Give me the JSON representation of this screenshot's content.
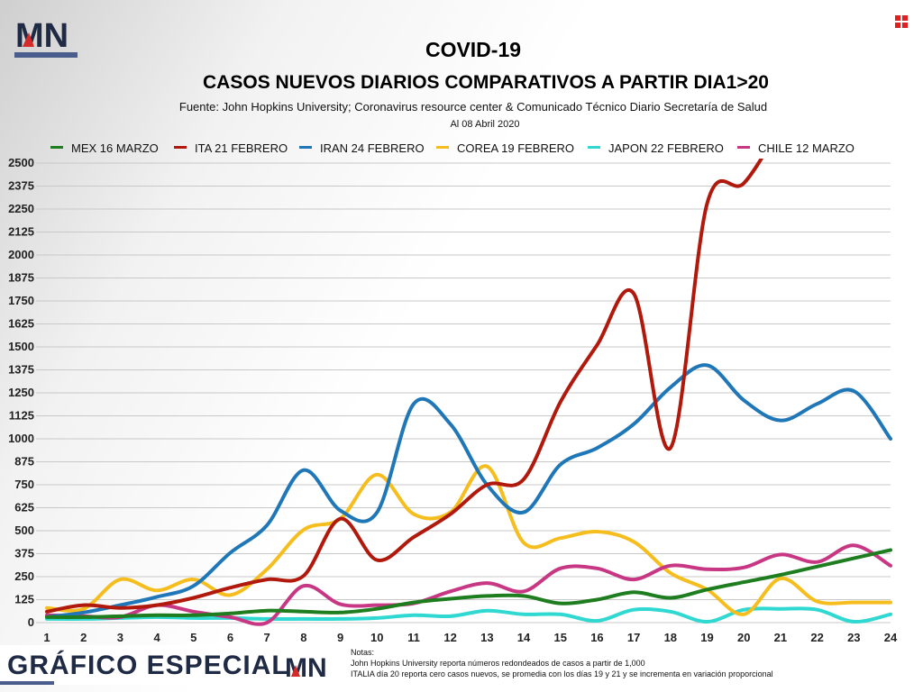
{
  "header": {
    "logo_text": "MN",
    "title": "COVID-19",
    "subtitle": "CASOS NUEVOS DIARIOS COMPARATIVOS A PARTIR DIA1>20",
    "source": "Fuente: John Hopkins University; Coronavirus resource center & Comunicado Técnico Diario Secretaría de Salud",
    "date": "Al 08 Abril 2020"
  },
  "colors": {
    "mex": "#1e7d1e",
    "ita": "#b0190c",
    "iran": "#1f77b8",
    "corea": "#f5be1e",
    "japon": "#2fd8d0",
    "chile": "#c83784",
    "brand_navy": "#1f2a44",
    "brand_red": "#d42a2a"
  },
  "footer": {
    "banner": "GRÁFICO ESPECIAL",
    "logo_text": "MN",
    "notes_title": "Notas:",
    "note_1": "John Hopkins University reporta números redondeados de casos a partir de 1,000",
    "note_2": "ITALIA día 20 reporta cero casos nuevos, se promedia con los días 19 y 21 y se incrementa en variación proporcional"
  },
  "chart_data": {
    "type": "line",
    "title": "COVID-19",
    "subtitle": "CASOS NUEVOS DIARIOS COMPARATIVOS A PARTIR DIA1>20",
    "x": [
      1,
      2,
      3,
      4,
      5,
      6,
      7,
      8,
      9,
      10,
      11,
      12,
      13,
      14,
      15,
      16,
      17,
      18,
      19,
      20,
      21,
      22,
      23,
      24
    ],
    "xlim": [
      1,
      24
    ],
    "ylim": [
      0,
      2500
    ],
    "yticks": [
      0,
      125,
      250,
      375,
      500,
      625,
      750,
      875,
      1000,
      1125,
      1250,
      1375,
      1500,
      1625,
      1750,
      1875,
      2000,
      2125,
      2250,
      2375,
      2500
    ],
    "grid": true,
    "legend_position": "top",
    "series": [
      {
        "key": "mex",
        "name": "MEX 16 MARZO",
        "color": "#1e7d1e",
        "values": [
          30,
          30,
          35,
          40,
          40,
          50,
          65,
          60,
          55,
          75,
          110,
          130,
          145,
          145,
          105,
          125,
          165,
          135,
          180,
          220,
          260,
          305,
          350,
          395
        ]
      },
      {
        "key": "ita",
        "name": "ITA 21 FEBRERO",
        "color": "#b0190c",
        "values": [
          60,
          95,
          80,
          95,
          135,
          190,
          235,
          255,
          565,
          340,
          465,
          590,
          750,
          780,
          1200,
          1510,
          1790,
          950,
          2280,
          2390,
          2700,
          null,
          null,
          null
        ]
      },
      {
        "key": "iran",
        "name": "IRAN 24 FEBRERO",
        "color": "#1f77b8",
        "values": [
          30,
          55,
          95,
          140,
          200,
          380,
          530,
          830,
          610,
          600,
          1190,
          1080,
          750,
          600,
          860,
          950,
          1080,
          1280,
          1400,
          1210,
          1100,
          1190,
          1260,
          1000
        ]
      },
      {
        "key": "corea",
        "name": "COREA 19 FEBRERO",
        "color": "#f5be1e",
        "values": [
          80,
          75,
          235,
          175,
          235,
          150,
          290,
          505,
          565,
          805,
          590,
          600,
          850,
          435,
          460,
          495,
          440,
          270,
          180,
          45,
          240,
          115,
          110,
          110
        ]
      },
      {
        "key": "japon",
        "name": "JAPON 22 FEBRERO",
        "color": "#2fd8d0",
        "values": [
          20,
          20,
          25,
          30,
          25,
          25,
          20,
          20,
          20,
          25,
          40,
          35,
          65,
          45,
          45,
          10,
          70,
          60,
          5,
          70,
          75,
          70,
          5,
          45
        ]
      },
      {
        "key": "chile",
        "name": "CHILE 12 MARZO",
        "color": "#c83784",
        "values": [
          40,
          35,
          30,
          95,
          60,
          30,
          0,
          200,
          100,
          95,
          105,
          170,
          215,
          170,
          295,
          295,
          235,
          310,
          290,
          300,
          370,
          330,
          420,
          310
        ]
      }
    ]
  }
}
